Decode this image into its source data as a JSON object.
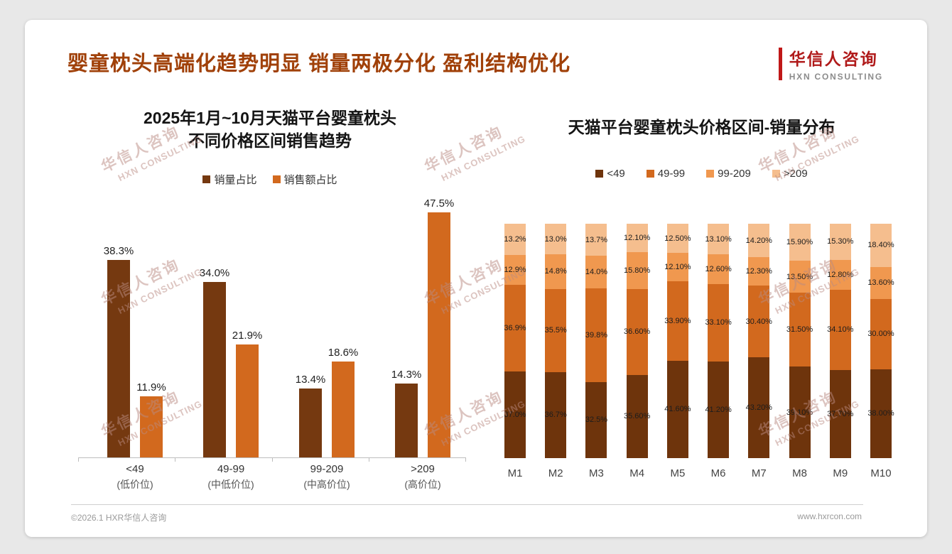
{
  "slide": {
    "title": "婴童枕头高端化趋势明显 销量两极分化 盈利结构优化",
    "footer_left": "©2026.1 HXR华信人咨询",
    "footer_right": "www.hxrcon.com"
  },
  "logo": {
    "cn": "华信人咨询",
    "en": "HXN CONSULTING"
  },
  "watermark": {
    "cn": "华信人咨询",
    "en": "HXN CONSULTING"
  },
  "colors": {
    "slide_title": "#A04008",
    "series_dark_brown": "#753910",
    "series_orange": "#D2691E",
    "series_light_orange": "#F0984F",
    "series_pale_orange": "#F5BE8E"
  },
  "chart_data": [
    {
      "type": "bar",
      "title_lines": [
        "2025年1月~10月天猫平台婴童枕头",
        "不同价格区间销售趋势"
      ],
      "legend_position": "top",
      "grid": false,
      "unit": "%",
      "ylim": [
        0,
        50
      ],
      "categories": [
        "<49",
        "49-99",
        "99-209",
        ">209"
      ],
      "category_sub": [
        "(低价位)",
        "(中低价位)",
        "(中高价位)",
        "(高价位)"
      ],
      "series": [
        {
          "name": "销量占比",
          "color": "#753910",
          "values": [
            38.3,
            34.0,
            13.4,
            14.3
          ],
          "labels": [
            "38.3%",
            "34.0%",
            "13.4%",
            "14.3%"
          ]
        },
        {
          "name": "销售额占比",
          "color": "#D2691E",
          "values": [
            11.9,
            21.9,
            18.6,
            47.5
          ],
          "labels": [
            "11.9%",
            "21.9%",
            "18.6%",
            "47.5%"
          ]
        }
      ]
    },
    {
      "type": "bar",
      "subtype": "stacked-100",
      "title": "天猫平台婴童枕头价格区间-销量分布",
      "legend_position": "top",
      "grid": false,
      "unit": "%",
      "ylim": [
        0,
        100
      ],
      "categories": [
        "M1",
        "M2",
        "M3",
        "M4",
        "M5",
        "M6",
        "M7",
        "M8",
        "M9",
        "M10"
      ],
      "series": [
        {
          "name": "<49",
          "color": "#6E340C",
          "values": [
            37.0,
            36.7,
            32.5,
            35.6,
            41.6,
            41.2,
            43.2,
            39.1,
            37.7,
            38.0
          ],
          "labels": [
            "37.0%",
            "36.7%",
            "32.5%",
            "35.60%",
            "41.60%",
            "41.20%",
            "43.20%",
            "39.10%",
            "37.70%",
            "38.00%"
          ]
        },
        {
          "name": "49-99",
          "color": "#D2691E",
          "values": [
            36.9,
            35.5,
            39.8,
            36.6,
            33.9,
            33.1,
            30.4,
            31.5,
            34.1,
            30.0
          ],
          "labels": [
            "36.9%",
            "35.5%",
            "39.8%",
            "36.60%",
            "33.90%",
            "33.10%",
            "30.40%",
            "31.50%",
            "34.10%",
            "30.00%"
          ]
        },
        {
          "name": "99-209",
          "color": "#F0984F",
          "values": [
            12.9,
            14.8,
            14.0,
            15.8,
            12.1,
            12.6,
            12.3,
            13.5,
            12.8,
            13.6
          ],
          "labels": [
            "12.9%",
            "14.8%",
            "14.0%",
            "15.80%",
            "12.10%",
            "12.60%",
            "12.30%",
            "13.50%",
            "12.80%",
            "13.60%"
          ]
        },
        {
          "name": ">209",
          "color": "#F5BE8E",
          "values": [
            13.2,
            13.0,
            13.7,
            12.1,
            12.5,
            13.1,
            14.2,
            15.9,
            15.3,
            18.4
          ],
          "labels": [
            "13.2%",
            "13.0%",
            "13.7%",
            "12.10%",
            "12.50%",
            "13.10%",
            "14.20%",
            "15.90%",
            "15.30%",
            "18.40%"
          ]
        }
      ]
    }
  ]
}
